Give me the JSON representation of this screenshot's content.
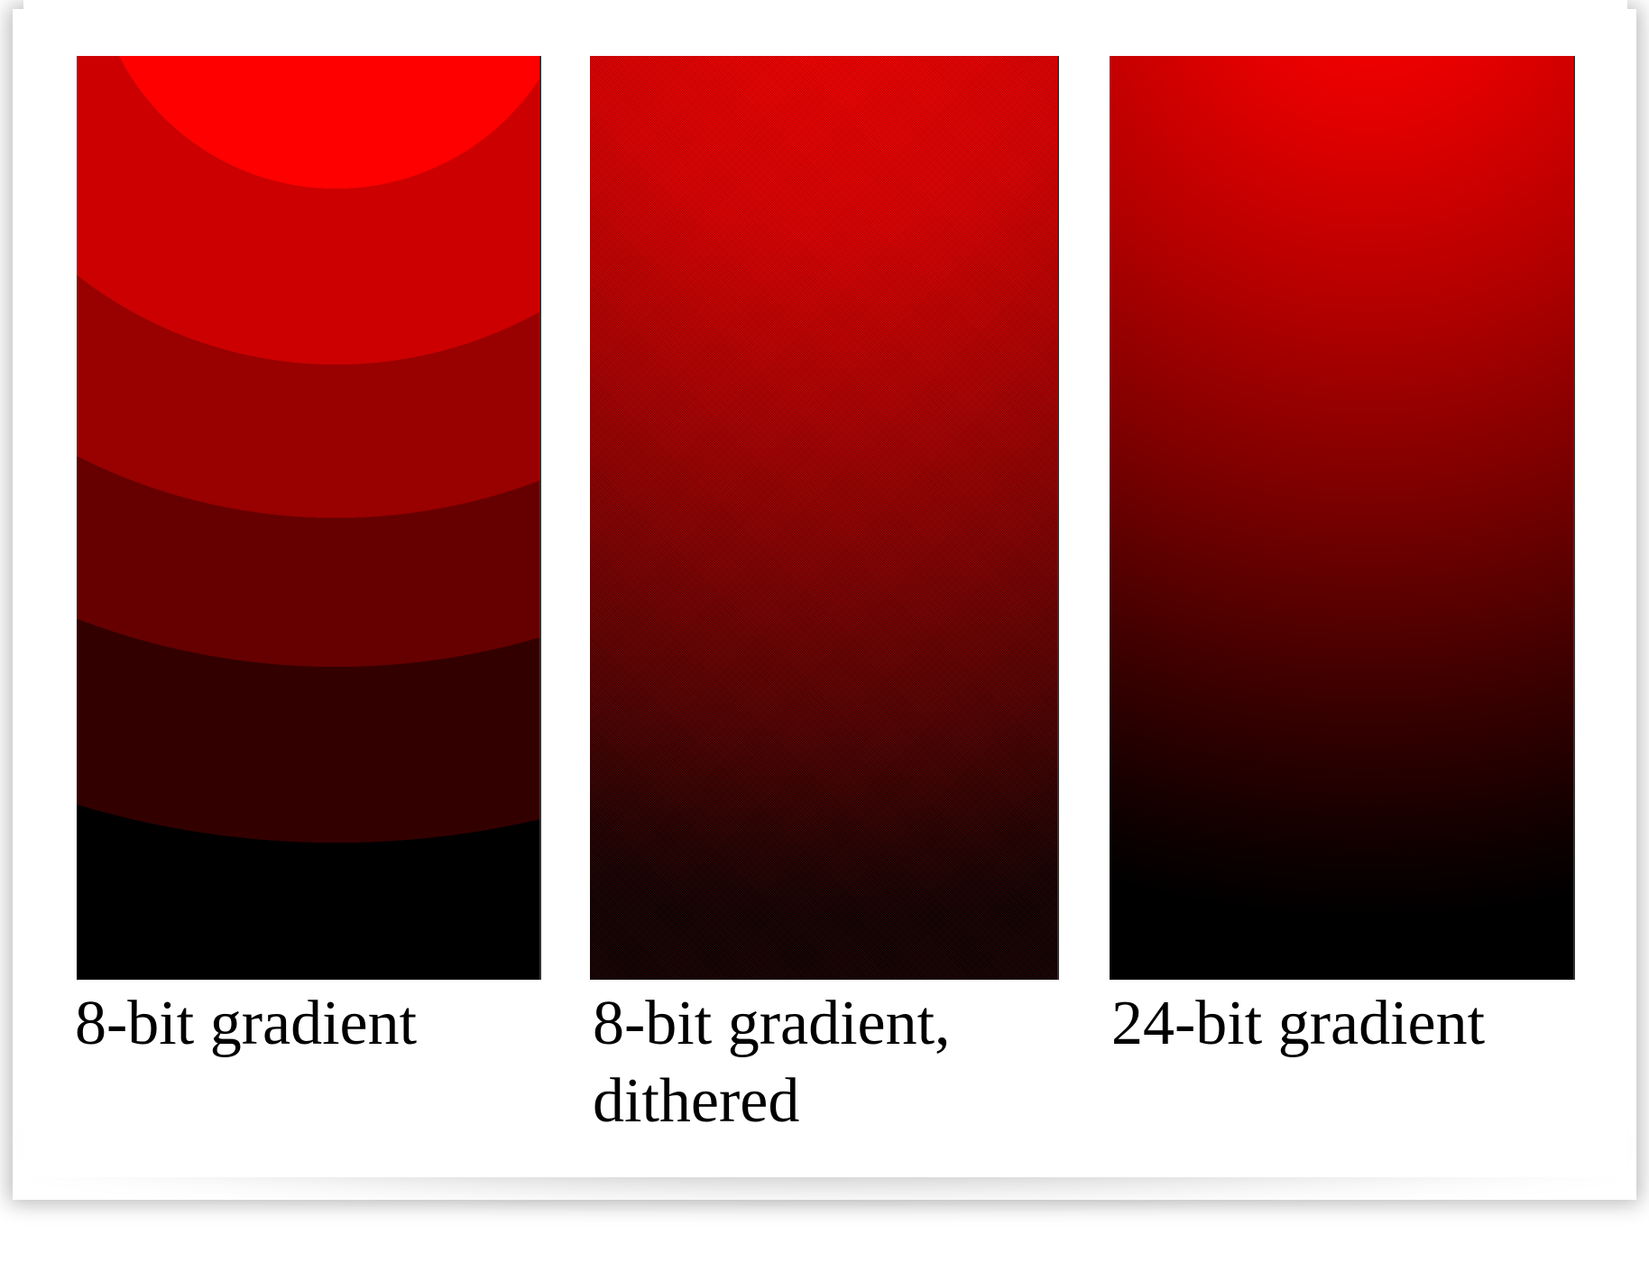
{
  "captions": {
    "banded": "8-bit gradient",
    "dithered": "8-bit gradient,\ndithered",
    "smooth": "24-bit gradient"
  },
  "colors": {
    "brightest": "#ff0000",
    "darkest": "#000000",
    "background": "#ffffff"
  }
}
